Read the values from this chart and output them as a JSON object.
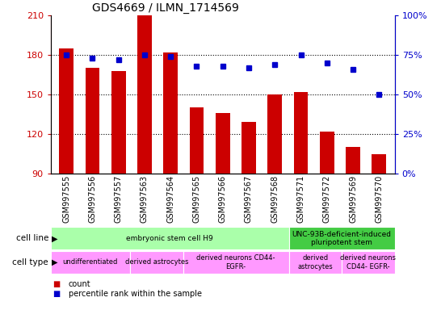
{
  "title": "GDS4669 / ILMN_1714569",
  "samples": [
    "GSM997555",
    "GSM997556",
    "GSM997557",
    "GSM997563",
    "GSM997564",
    "GSM997565",
    "GSM997566",
    "GSM997567",
    "GSM997568",
    "GSM997571",
    "GSM997572",
    "GSM997569",
    "GSM997570"
  ],
  "bar_values": [
    185,
    170,
    168,
    210,
    182,
    140,
    136,
    129,
    150,
    152,
    122,
    110,
    105
  ],
  "dot_values": [
    75,
    73,
    72,
    75,
    74,
    68,
    68,
    67,
    69,
    75,
    70,
    66,
    50
  ],
  "ylim_left": [
    90,
    210
  ],
  "ylim_right": [
    0,
    100
  ],
  "yticks_left": [
    90,
    120,
    150,
    180,
    210
  ],
  "yticks_right": [
    0,
    25,
    50,
    75,
    100
  ],
  "bar_color": "#cc0000",
  "dot_color": "#0000cc",
  "cell_line_groups": [
    {
      "label": "embryonic stem cell H9",
      "start": 0,
      "end": 9,
      "color": "#aaffaa"
    },
    {
      "label": "UNC-93B-deficient-induced\npluripotent stem",
      "start": 9,
      "end": 13,
      "color": "#44cc44"
    }
  ],
  "cell_type_groups": [
    {
      "label": "undifferentiated",
      "start": 0,
      "end": 3,
      "color": "#ff99ff"
    },
    {
      "label": "derived astrocytes",
      "start": 3,
      "end": 5,
      "color": "#ff99ff"
    },
    {
      "label": "derived neurons CD44-\nEGFR-",
      "start": 5,
      "end": 9,
      "color": "#ff99ff"
    },
    {
      "label": "derived\nastrocytes",
      "start": 9,
      "end": 11,
      "color": "#ff99ff"
    },
    {
      "label": "derived neurons\nCD44- EGFR-",
      "start": 11,
      "end": 13,
      "color": "#ff99ff"
    }
  ],
  "legend_count_label": "count",
  "legend_pct_label": "percentile rank within the sample",
  "cell_line_label": "cell line",
  "cell_type_label": "cell type"
}
